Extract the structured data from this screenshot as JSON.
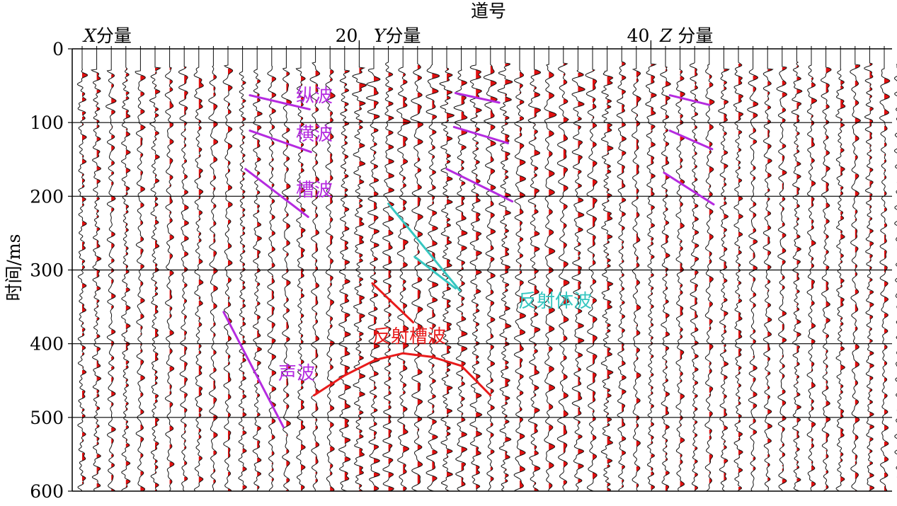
{
  "chart_data": {
    "type": "seismic_wiggle",
    "top_label": "道号",
    "ylabel": "时间/ms",
    "ylim": [
      0,
      600
    ],
    "yticks": [
      0,
      100,
      200,
      300,
      400,
      500,
      600
    ],
    "grid": true,
    "trace_count": 57,
    "trace_ticks": [
      {
        "trace": 20,
        "label": "20"
      },
      {
        "trace": 40,
        "label": "40"
      }
    ],
    "components": [
      {
        "name_var": "X",
        "name_suffix": "分量",
        "first_trace": 1,
        "last_trace": 18
      },
      {
        "name_var": "Y",
        "name_suffix": "分量",
        "first_trace": 19,
        "last_trace": 37
      },
      {
        "name_var": "Z",
        "name_suffix": " 分量",
        "first_trace": 38,
        "last_trace": 57
      }
    ],
    "annotations": [
      {
        "label": "纵波",
        "color": "#b52be0"
      },
      {
        "label": "横波",
        "color": "#b52be0"
      },
      {
        "label": "槽波",
        "color": "#b52be0"
      },
      {
        "label": "声波",
        "color": "#b52be0"
      },
      {
        "label": "反射体波",
        "color": "#36c6c0"
      },
      {
        "label": "反射槽波",
        "color": "#e81b1b"
      }
    ],
    "picks": [
      {
        "wave": "纵波",
        "color": "#b52be0",
        "points": [
          [
            12.5,
            63
          ],
          [
            16.6,
            82
          ]
        ]
      },
      {
        "wave": "横波",
        "color": "#b52be0",
        "points": [
          [
            12.5,
            111
          ],
          [
            16.7,
            140
          ]
        ]
      },
      {
        "wave": "槽波",
        "color": "#b52be0",
        "points": [
          [
            12.2,
            163
          ],
          [
            16.5,
            228
          ]
        ]
      },
      {
        "wave": "声波",
        "color": "#b52be0",
        "points": [
          [
            10.7,
            357
          ],
          [
            14.8,
            513
          ]
        ]
      },
      {
        "wave": "纵波",
        "color": "#b52be0",
        "points": [
          [
            26.6,
            60
          ],
          [
            29.6,
            73
          ]
        ]
      },
      {
        "wave": "横波",
        "color": "#b52be0",
        "points": [
          [
            26.5,
            106
          ],
          [
            30.2,
            128
          ]
        ]
      },
      {
        "wave": "槽波",
        "color": "#b52be0",
        "points": [
          [
            26.0,
            163
          ],
          [
            30.5,
            207
          ]
        ]
      },
      {
        "wave": "纵波",
        "color": "#b52be0",
        "points": [
          [
            41.3,
            63
          ],
          [
            44.0,
            76
          ]
        ]
      },
      {
        "wave": "横波",
        "color": "#b52be0",
        "points": [
          [
            41.3,
            111
          ],
          [
            44.2,
            136
          ]
        ]
      },
      {
        "wave": "槽波",
        "color": "#b52be0",
        "points": [
          [
            40.9,
            168
          ],
          [
            44.3,
            211
          ]
        ]
      },
      {
        "wave": "反射体波",
        "color": "#36c6c0",
        "points": [
          [
            22.0,
            210
          ],
          [
            26.9,
            328
          ]
        ]
      },
      {
        "wave": "反射体波",
        "color": "#36c6c0",
        "points": [
          [
            23.8,
            282
          ],
          [
            26.6,
            325
          ]
        ]
      },
      {
        "wave": "反射槽波",
        "color": "#e81b1b",
        "points": [
          [
            20.9,
            318
          ],
          [
            23.7,
            371
          ]
        ]
      },
      {
        "wave": "反射槽波",
        "color": "#e81b1b",
        "points": [
          [
            16.9,
            470
          ],
          [
            19.0,
            443
          ],
          [
            21.1,
            422
          ],
          [
            23.0,
            413
          ],
          [
            25.0,
            418
          ],
          [
            27.0,
            430
          ],
          [
            29.0,
            470
          ]
        ]
      }
    ]
  }
}
